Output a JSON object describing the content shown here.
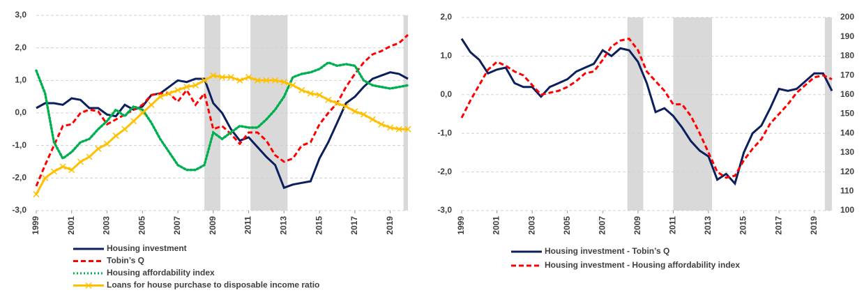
{
  "chart_data": [
    {
      "type": "line",
      "x": [
        1999,
        1999.5,
        2000,
        2000.5,
        2001,
        2001.5,
        2002,
        2002.5,
        2003,
        2003.5,
        2004,
        2004.5,
        2005,
        2005.5,
        2006,
        2006.5,
        2007,
        2007.5,
        2008,
        2008.5,
        2009,
        2009.5,
        2010,
        2010.5,
        2011,
        2011.5,
        2012,
        2012.5,
        2013,
        2013.5,
        2014,
        2014.5,
        2015,
        2015.5,
        2016,
        2016.5,
        2017,
        2017.5,
        2018,
        2018.5,
        2019,
        2019.5,
        2020
      ],
      "xlim": [
        1999,
        2020
      ],
      "xticks": [
        1999,
        2001,
        2003,
        2005,
        2007,
        2009,
        2011,
        2013,
        2015,
        2017,
        2019
      ],
      "ylim": [
        -3,
        3
      ],
      "yticks": [
        {
          "value": -3,
          "label": "-3,0"
        },
        {
          "value": -2,
          "label": "-2,0"
        },
        {
          "value": -1,
          "label": "-1,0"
        },
        {
          "value": 0,
          "label": "0,0"
        },
        {
          "value": 1,
          "label": "1,0"
        },
        {
          "value": 2,
          "label": "2,0"
        },
        {
          "value": 3,
          "label": "3,0"
        }
      ],
      "grid": true,
      "shaded_periods": [
        [
          2008.5,
          2009.4
        ],
        [
          2011.1,
          2013.2
        ],
        [
          2019.75,
          2020
        ]
      ],
      "shade_color": "#d9d9d9",
      "series": [
        {
          "name": "Housing investment",
          "color": "#0b1f5c",
          "style": "solid",
          "values": [
            0.15,
            0.3,
            0.3,
            0.25,
            0.45,
            0.4,
            0.15,
            0.15,
            -0.05,
            -0.1,
            0.25,
            0.1,
            0.2,
            0.55,
            0.6,
            0.8,
            1.0,
            0.95,
            1.05,
            1.05,
            0.3,
            0.0,
            -0.5,
            -0.85,
            -0.75,
            -1.05,
            -1.35,
            -1.6,
            -2.3,
            -2.2,
            -2.15,
            -2.1,
            -1.4,
            -0.9,
            -0.3,
            0.3,
            0.5,
            0.8,
            1.05,
            1.15,
            1.25,
            1.2,
            1.05
          ]
        },
        {
          "name": "Tobin’s Q",
          "color": "#ff0000",
          "style": "dashed",
          "values": [
            -2.25,
            -1.6,
            -1.0,
            -0.4,
            -0.35,
            0.0,
            0.1,
            0.05,
            -0.35,
            -0.2,
            -0.05,
            0.1,
            0.25,
            0.55,
            0.6,
            0.6,
            0.35,
            0.7,
            0.25,
            0.6,
            -0.5,
            -0.4,
            -0.65,
            -0.95,
            -0.6,
            -0.6,
            -0.85,
            -1.3,
            -1.5,
            -1.4,
            -1.0,
            -0.9,
            -0.35,
            0.0,
            0.3,
            0.8,
            1.2,
            1.55,
            1.8,
            1.9,
            2.05,
            2.15,
            2.4
          ]
        },
        {
          "name": "Housing affordability index",
          "color": "#00b050",
          "style": "dotted",
          "values": [
            1.3,
            0.6,
            -0.9,
            -1.4,
            -1.2,
            -0.9,
            -0.8,
            -0.5,
            -0.25,
            0.1,
            -0.1,
            0.2,
            0.1,
            -0.3,
            -0.8,
            -1.2,
            -1.6,
            -1.75,
            -1.75,
            -1.6,
            -0.6,
            -0.8,
            -0.6,
            -0.4,
            -0.45,
            -0.45,
            -0.2,
            0.1,
            0.5,
            1.1,
            1.2,
            1.25,
            1.35,
            1.55,
            1.45,
            1.5,
            1.45,
            1.0,
            0.85,
            0.8,
            0.75,
            0.8,
            0.85
          ]
        },
        {
          "name": "Loans for house purchase to disposable income ratio",
          "color": "#ffc000",
          "style": "solid",
          "marker": "x",
          "values": [
            -2.5,
            -2.0,
            -1.8,
            -1.65,
            -1.75,
            -1.5,
            -1.35,
            -1.1,
            -0.95,
            -0.7,
            -0.5,
            -0.25,
            0.0,
            0.25,
            0.5,
            0.6,
            0.7,
            0.8,
            0.85,
            1.0,
            1.15,
            1.1,
            1.1,
            1.0,
            1.1,
            1.0,
            1.0,
            1.0,
            0.95,
            0.85,
            0.7,
            0.6,
            0.55,
            0.4,
            0.3,
            0.2,
            0.05,
            -0.05,
            -0.2,
            -0.35,
            -0.45,
            -0.5,
            -0.5
          ]
        }
      ]
    },
    {
      "type": "line",
      "x": [
        1999,
        1999.5,
        2000,
        2000.5,
        2001,
        2001.5,
        2002,
        2002.5,
        2003,
        2003.5,
        2004,
        2004.5,
        2005,
        2005.5,
        2006,
        2006.5,
        2007,
        2007.5,
        2008,
        2008.5,
        2009,
        2009.5,
        2010,
        2010.5,
        2011,
        2011.5,
        2012,
        2012.5,
        2013,
        2013.5,
        2014,
        2014.5,
        2015,
        2015.5,
        2016,
        2016.5,
        2017,
        2017.5,
        2018,
        2018.5,
        2019,
        2019.5,
        2020
      ],
      "xlim": [
        1999,
        2020
      ],
      "xticks": [
        1999,
        2001,
        2003,
        2005,
        2007,
        2009,
        2011,
        2013,
        2015,
        2017,
        2019
      ],
      "ylim": [
        -3,
        2
      ],
      "yticks": [
        {
          "value": -3,
          "label": "-3,0"
        },
        {
          "value": -2,
          "label": "-2,0"
        },
        {
          "value": -1,
          "label": "-1,0"
        },
        {
          "value": 0,
          "label": "0,0"
        },
        {
          "value": 1,
          "label": "1,0"
        },
        {
          "value": 2,
          "label": "2,0"
        }
      ],
      "y2lim": [
        100,
        200
      ],
      "y2ticks": [
        100,
        110,
        120,
        130,
        140,
        150,
        160,
        170,
        180,
        190,
        200
      ],
      "grid": true,
      "shaded_periods": [
        [
          2008.4,
          2009.3
        ],
        [
          2011.0,
          2013.2
        ],
        [
          2019.6,
          2020
        ]
      ],
      "shade_color": "#d9d9d9",
      "series": [
        {
          "name": "Housing investment - Tobin’s Q",
          "color": "#0b1f5c",
          "style": "solid",
          "values": [
            1.45,
            1.1,
            0.9,
            0.55,
            0.65,
            0.7,
            0.3,
            0.2,
            0.2,
            -0.05,
            0.2,
            0.3,
            0.4,
            0.6,
            0.7,
            0.8,
            1.15,
            1.0,
            1.2,
            1.15,
            0.85,
            0.3,
            -0.45,
            -0.35,
            -0.55,
            -0.85,
            -1.2,
            -1.45,
            -1.6,
            -2.2,
            -2.05,
            -2.3,
            -1.5,
            -1.0,
            -0.8,
            -0.35,
            0.15,
            0.1,
            0.15,
            0.35,
            0.55,
            0.55,
            0.1
          ]
        },
        {
          "name": "Housing investment - Housing affordability index",
          "color": "#ff0000",
          "style": "dashed",
          "axis": "y2",
          "values": [
            148,
            157,
            165,
            173,
            177,
            175,
            172,
            170,
            165,
            160,
            161,
            162,
            164,
            167,
            171,
            172,
            178,
            185,
            188,
            189,
            183,
            172,
            167,
            162,
            155,
            155,
            149,
            140,
            130,
            120,
            117,
            118,
            126,
            132,
            137,
            145,
            150,
            155,
            161,
            165,
            169,
            170,
            168
          ]
        }
      ]
    }
  ]
}
